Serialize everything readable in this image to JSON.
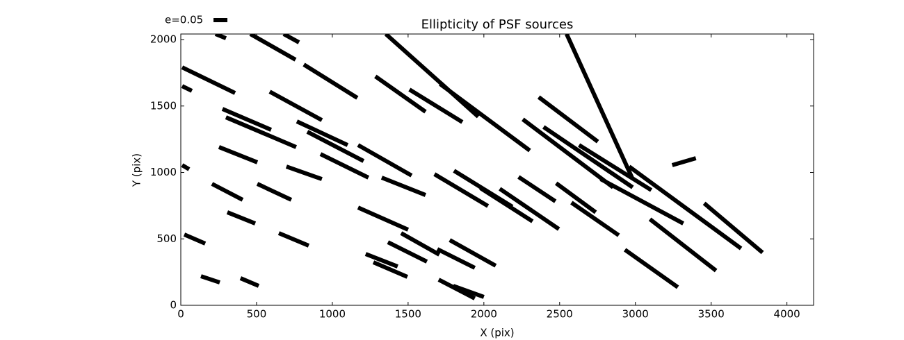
{
  "chart_data": {
    "type": "segments",
    "title": "Ellipticity of PSF sources",
    "xlabel": "X (pix)",
    "ylabel": "Y (pix)",
    "legend": "e=0.05",
    "color": "#000000",
    "x1": [
      9,
      9,
      229,
      459,
      679,
      812,
      587,
      275,
      298,
      766,
      835,
      1170,
      1284,
      1509,
      1353,
      1711,
      252,
      9,
      206,
      697,
      922,
      505,
      1326,
      1674,
      1803,
      1977,
      2257,
      2394,
      2362,
      2546,
      2628,
      2771,
      2959,
      3243,
      3454,
      2229,
      2477,
      2578,
      2105,
      1170,
      1454,
      1367,
      1220,
      1271,
      1693,
      1775,
      1702,
      1798,
      2931,
      3096,
      23,
      307,
      647,
      133,
      394
    ],
    "y1": [
      1791,
      1650,
      2042,
      2042,
      2042,
      1812,
      1608,
      1478,
      1415,
      1384,
      1306,
      1206,
      1723,
      1624,
      2042,
      1666,
      1191,
      1055,
      914,
      1044,
      1138,
      914,
      961,
      987,
      1013,
      883,
      1400,
      1342,
      1567,
      2042,
      1206,
      950,
      1044,
      1055,
      768,
      966,
      919,
      773,
      877,
      736,
      543,
      475,
      386,
      324,
      423,
      491,
      193,
      146,
      418,
      648,
      533,
      700,
      543,
      219,
      204
    ],
    "x2": [
      358,
      73,
      298,
      757,
      780,
      1165,
      931,
      596,
      761,
      1101,
      1206,
      1523,
      1615,
      1858,
      1963,
      2303,
      505,
      55,
      408,
      931,
      1238,
      729,
      1615,
      2027,
      2188,
      2321,
      2853,
      2982,
      2752,
      2982,
      3105,
      3316,
      3697,
      3399,
      3839,
      2472,
      2738,
      2890,
      2495,
      1500,
      1706,
      1624,
      1431,
      1495,
      1940,
      2078,
      1940,
      2000,
      3280,
      3532,
      161,
      491,
      844,
      257,
      514
    ],
    "y2": [
      1598,
      1614,
      2010,
      1849,
      1979,
      1561,
      1394,
      1321,
      1191,
      1206,
      1086,
      977,
      1457,
      1379,
      1420,
      1165,
      1076,
      1024,
      794,
      950,
      961,
      794,
      830,
      747,
      742,
      632,
      888,
      888,
      1232,
      950,
      867,
      616,
      428,
      1107,
      397,
      783,
      700,
      527,
      574,
      569,
      381,
      329,
      292,
      214,
      282,
      298,
      52,
      63,
      136,
      261,
      465,
      616,
      449,
      172,
      146
    ],
    "xlim": [
      0,
      4176
    ],
    "ylim": [
      0,
      2042
    ],
    "xticks": [
      0,
      500,
      1000,
      1500,
      2000,
      2500,
      3000,
      3500,
      4000
    ],
    "yticks": [
      0,
      500,
      1000,
      1500,
      2000
    ]
  }
}
